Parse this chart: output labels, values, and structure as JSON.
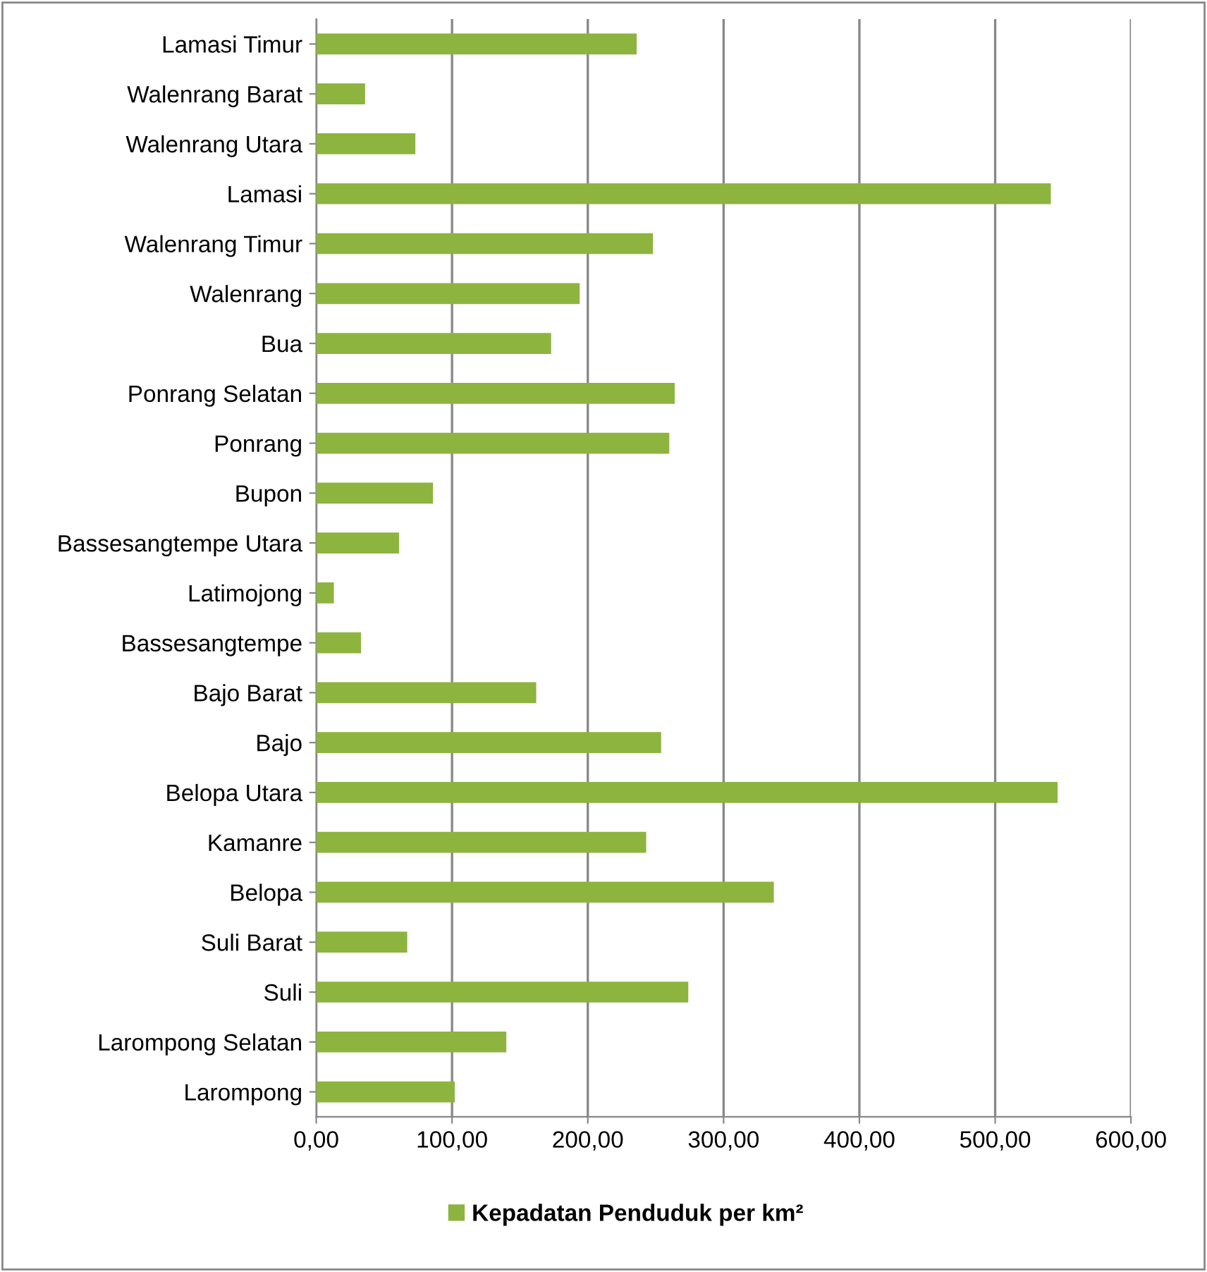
{
  "chart_data": {
    "type": "bar",
    "orientation": "horizontal",
    "legend": "bottom",
    "grid": "x",
    "categories": [
      "Lamasi Timur",
      "Walenrang Barat",
      "Walenrang Utara",
      "Lamasi",
      "Walenrang Timur",
      "Walenrang",
      "Bua",
      "Ponrang Selatan",
      "Ponrang",
      "Bupon",
      "Bassesangtempe Utara",
      "Latimojong",
      "Bassesangtempe",
      "Bajo Barat",
      "Bajo",
      "Belopa Utara",
      "Kamanre",
      "Belopa",
      "Suli Barat",
      "Suli",
      "Larompong Selatan",
      "Larompong"
    ],
    "series": [
      {
        "name": "Kepadatan Penduduk per km²",
        "color": "#8db43f",
        "values": [
          236,
          36,
          73,
          541,
          248,
          194,
          173,
          264,
          260,
          86,
          61,
          13,
          33,
          162,
          254,
          546,
          243,
          337,
          67,
          274,
          140,
          102
        ]
      }
    ],
    "xlim": [
      0,
      600
    ],
    "xticks": [
      {
        "value": 0,
        "label": "0,00"
      },
      {
        "value": 100,
        "label": "100,00"
      },
      {
        "value": 200,
        "label": "200,00"
      },
      {
        "value": 300,
        "label": "300,00"
      },
      {
        "value": 400,
        "label": "400,00"
      },
      {
        "value": 500,
        "label": "500,00"
      },
      {
        "value": 600,
        "label": "600,00"
      }
    ]
  }
}
